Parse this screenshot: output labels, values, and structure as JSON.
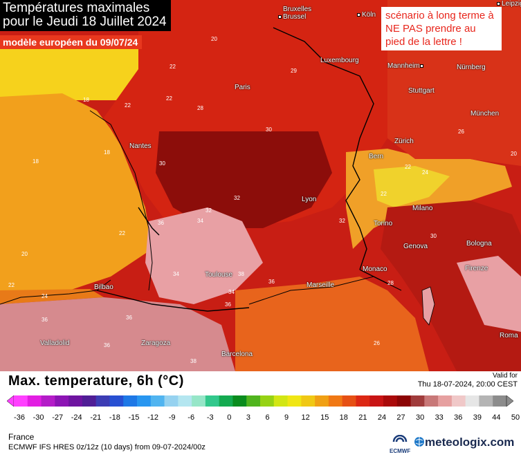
{
  "header": {
    "title_line1": "Températures maximales",
    "title_line2": "pour le Jeudi 18 Juillet 2024",
    "model_note": "modèle européen du 09/07/24",
    "scenario_note": "scénario à long terme à NE PAS prendre au pied de la lettre !"
  },
  "map": {
    "cities": [
      "Bruxelles Brussel",
      "Köln",
      "Leipzig",
      "Luxembourg",
      "Mannheim",
      "Nürnberg",
      "Paris",
      "Stuttgart",
      "München",
      "Nantes",
      "Zürich",
      "Bern",
      "Lyon",
      "Milano",
      "Torino",
      "Genova",
      "Bologna",
      "Monaco",
      "Marseille",
      "Firenze",
      "Toulouse",
      "Bilbao",
      "Valladolid",
      "Zaragoza",
      "Barcelona",
      "Roma"
    ],
    "isotherm_labels": [
      "20",
      "22",
      "29",
      "22",
      "18",
      "22",
      "28",
      "26",
      "18",
      "18",
      "30",
      "30",
      "22",
      "24",
      "20",
      "32",
      "32",
      "32",
      "34",
      "36",
      "30",
      "34",
      "36",
      "38",
      "22",
      "20",
      "22",
      "24",
      "26",
      "28",
      "34",
      "36",
      "36",
      "36",
      "38",
      "36",
      "22"
    ],
    "colors": {
      "sea_orange": "#f2a01c",
      "atlantic_yellow": "#f6d21c",
      "land_red": "#d42412",
      "hot_darkred": "#8c0d0a",
      "very_hot_pink": "#e8a0a4",
      "alps_yellow": "#f0d22c"
    }
  },
  "legend": {
    "title": "Max. temperature, 6h (°C)",
    "valid_label": "Valid for",
    "valid_date": "Thu 18-07-2024, 20:00 CEST",
    "ticks": [
      "-36",
      "-30",
      "-27",
      "-24",
      "-21",
      "-18",
      "-15",
      "-12",
      "-9",
      "-6",
      "-3",
      "0",
      "3",
      "6",
      "9",
      "12",
      "15",
      "18",
      "21",
      "24",
      "27",
      "30",
      "33",
      "36",
      "39",
      "44",
      "50"
    ],
    "colorbar_colors": [
      "#ff40ff",
      "#e21ee2",
      "#b41cc8",
      "#8c14b4",
      "#6e14a0",
      "#501e96",
      "#3c3cb4",
      "#2850d2",
      "#1e78e6",
      "#2896f0",
      "#50b4f0",
      "#96d2f0",
      "#b4e6f0",
      "#96e6c8",
      "#32c88c",
      "#14aa50",
      "#0a8c1e",
      "#50b41e",
      "#96d214",
      "#d2e614",
      "#f0e614",
      "#f0c814",
      "#f0a014",
      "#f07814",
      "#e65014",
      "#dc2814",
      "#c81414",
      "#aa0a0a",
      "#8c0505",
      "#a03c3c",
      "#c87878",
      "#e6a0a0",
      "#f0c8c8",
      "#e6e6e6",
      "#b4b4b4",
      "#8c8c8c"
    ]
  },
  "footer": {
    "region": "France",
    "model_info": "ECMWF IFS HRES 0z/12z (10 days) from 09-07-2024/00z",
    "ecmwf_label": "ECMWF",
    "brand": "meteologix.com"
  }
}
